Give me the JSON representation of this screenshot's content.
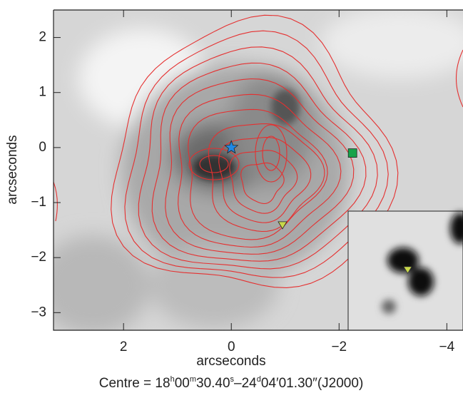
{
  "chart_data": {
    "type": "scatter",
    "xlabel": "arcseconds",
    "ylabel": "arcseconds",
    "caption": [
      "Centre = 18",
      "h",
      "00",
      "m",
      "30.40",
      "s",
      "–24",
      "d",
      "04′01.30″(J2000)"
    ],
    "xlim": [
      3.3,
      -4.3
    ],
    "ylim": [
      -3.32,
      2.5
    ],
    "xticks": [
      2,
      0,
      {
        "value": -2,
        "label": "−2"
      },
      {
        "value": -4,
        "label": "−4"
      }
    ],
    "yticks": [
      2,
      1,
      0,
      {
        "value": -1,
        "label": "−1"
      },
      {
        "value": -2,
        "label": "−2"
      },
      {
        "value": -3,
        "label": "−3"
      }
    ],
    "series": [
      {
        "marker": "star",
        "color": "#1e88e5",
        "x": [
          0
        ],
        "values": [
          0
        ]
      },
      {
        "marker": "square",
        "color": "#17a34a",
        "x": [
          -2.25
        ],
        "values": [
          -0.1
        ]
      },
      {
        "marker": "triangle",
        "color": "#c8d84a",
        "x": [
          -0.95
        ],
        "values": [
          -1.4
        ]
      }
    ]
  }
}
